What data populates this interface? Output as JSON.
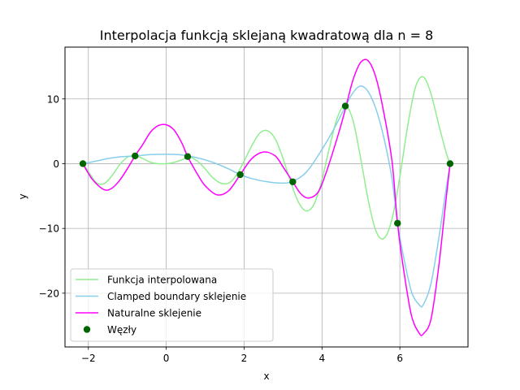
{
  "chart_data": {
    "type": "line",
    "title": "Interpolacja funkcją sklejaną kwadratową dla n = 8",
    "xlabel": "x",
    "ylabel": "y",
    "xlim": [
      -2.6,
      7.75
    ],
    "ylim": [
      -28.3,
      18.0
    ],
    "xticks": [
      -2,
      0,
      2,
      4,
      6
    ],
    "xtick_labels": [
      "−2",
      "0",
      "2",
      "4",
      "6"
    ],
    "yticks": [
      -20,
      -10,
      0,
      10
    ],
    "ytick_labels": [
      "−20",
      "−10",
      "0",
      "10"
    ],
    "grid": true,
    "legend_position": "lower-left",
    "series": [
      {
        "name": "Funkcja interpolowana",
        "color": "#90ee90",
        "kind": "line",
        "x": [
          -2.14,
          -2.0,
          -1.8,
          -1.6,
          -1.4,
          -1.2,
          -1.0,
          -0.8,
          -0.6,
          -0.4,
          -0.2,
          0.0,
          0.2,
          0.4,
          0.6,
          0.8,
          1.0,
          1.2,
          1.4,
          1.6,
          1.8,
          2.0,
          2.2,
          2.4,
          2.6,
          2.8,
          3.0,
          3.2,
          3.4,
          3.6,
          3.8,
          4.0,
          4.2,
          4.4,
          4.6,
          4.8,
          5.0,
          5.2,
          5.4,
          5.6,
          5.8,
          6.0,
          6.2,
          6.4,
          6.6,
          6.8,
          7.0,
          7.2,
          7.29
        ],
        "y": [
          0.0,
          -1.2,
          -2.9,
          -3.1,
          -1.9,
          -0.2,
          1.0,
          1.2,
          0.8,
          0.2,
          0.0,
          0.0,
          0.2,
          0.6,
          1.0,
          0.4,
          -0.8,
          -2.2,
          -3.0,
          -3.0,
          -1.8,
          0.4,
          2.8,
          4.7,
          5.1,
          3.8,
          0.8,
          -2.9,
          -6.0,
          -7.3,
          -6.2,
          -2.5,
          2.7,
          7.2,
          9.0,
          6.6,
          0.6,
          -6.0,
          -10.6,
          -11.5,
          -8.5,
          -2.0,
          5.8,
          11.8,
          13.4,
          10.8,
          6.0,
          1.5,
          0.0
        ]
      },
      {
        "name": "Clamped boundary sklejenie",
        "color": "#87ceeb",
        "kind": "line",
        "x": [
          -2.14,
          -1.8,
          -1.5,
          -1.2,
          -0.8,
          -0.4,
          0.0,
          0.4,
          0.8,
          1.2,
          1.6,
          1.9,
          2.2,
          2.6,
          3.0,
          3.25,
          3.6,
          4.0,
          4.3,
          4.6,
          4.8,
          5.0,
          5.2,
          5.4,
          5.6,
          5.8,
          5.94,
          6.1,
          6.3,
          6.5,
          6.6,
          6.8,
          7.0,
          7.15,
          7.29
        ],
        "y": [
          0.0,
          0.4,
          0.8,
          1.05,
          1.2,
          1.4,
          1.45,
          1.35,
          0.9,
          0.2,
          -0.8,
          -1.7,
          -2.3,
          -2.8,
          -3.0,
          -2.7,
          -1.3,
          2.2,
          5.3,
          8.8,
          11.0,
          12.0,
          11.0,
          8.2,
          3.7,
          -2.4,
          -9.2,
          -14.5,
          -19.8,
          -21.8,
          -21.8,
          -18.5,
          -11.5,
          -5.4,
          0.0
        ]
      },
      {
        "name": "Naturalne sklejenie",
        "color": "#ff00ff",
        "kind": "line",
        "x": [
          -2.14,
          -1.9,
          -1.6,
          -1.4,
          -1.2,
          -1.0,
          -0.8,
          -0.6,
          -0.4,
          -0.2,
          0.0,
          0.2,
          0.4,
          0.55,
          0.8,
          1.0,
          1.3,
          1.6,
          1.9,
          2.2,
          2.5,
          2.8,
          3.0,
          3.25,
          3.45,
          3.65,
          3.9,
          4.1,
          4.3,
          4.5,
          4.62,
          4.8,
          5.0,
          5.2,
          5.4,
          5.6,
          5.8,
          5.94,
          6.1,
          6.3,
          6.5,
          6.6,
          6.8,
          7.0,
          7.15,
          7.29
        ],
        "y": [
          0.0,
          -2.4,
          -4.0,
          -3.8,
          -2.6,
          -0.8,
          1.2,
          3.0,
          4.9,
          5.9,
          6.0,
          5.2,
          3.2,
          1.1,
          -1.6,
          -3.4,
          -4.8,
          -4.2,
          -1.7,
          0.8,
          1.8,
          1.2,
          -0.5,
          -2.8,
          -4.6,
          -5.3,
          -4.4,
          -1.5,
          2.2,
          6.2,
          8.9,
          13.0,
          15.7,
          15.8,
          13.0,
          7.5,
          0.3,
          -9.2,
          -16.5,
          -23.5,
          -26.2,
          -26.3,
          -24.0,
          -15.8,
          -7.5,
          0.0
        ]
      },
      {
        "name": "Węzły",
        "color": "#006400",
        "kind": "scatter",
        "x": [
          -2.14,
          -0.8,
          0.55,
          1.9,
          3.25,
          4.6,
          5.94,
          7.29
        ],
        "y": [
          0.0,
          1.2,
          1.1,
          -1.7,
          -2.8,
          8.9,
          -9.2,
          0.0
        ]
      }
    ]
  }
}
